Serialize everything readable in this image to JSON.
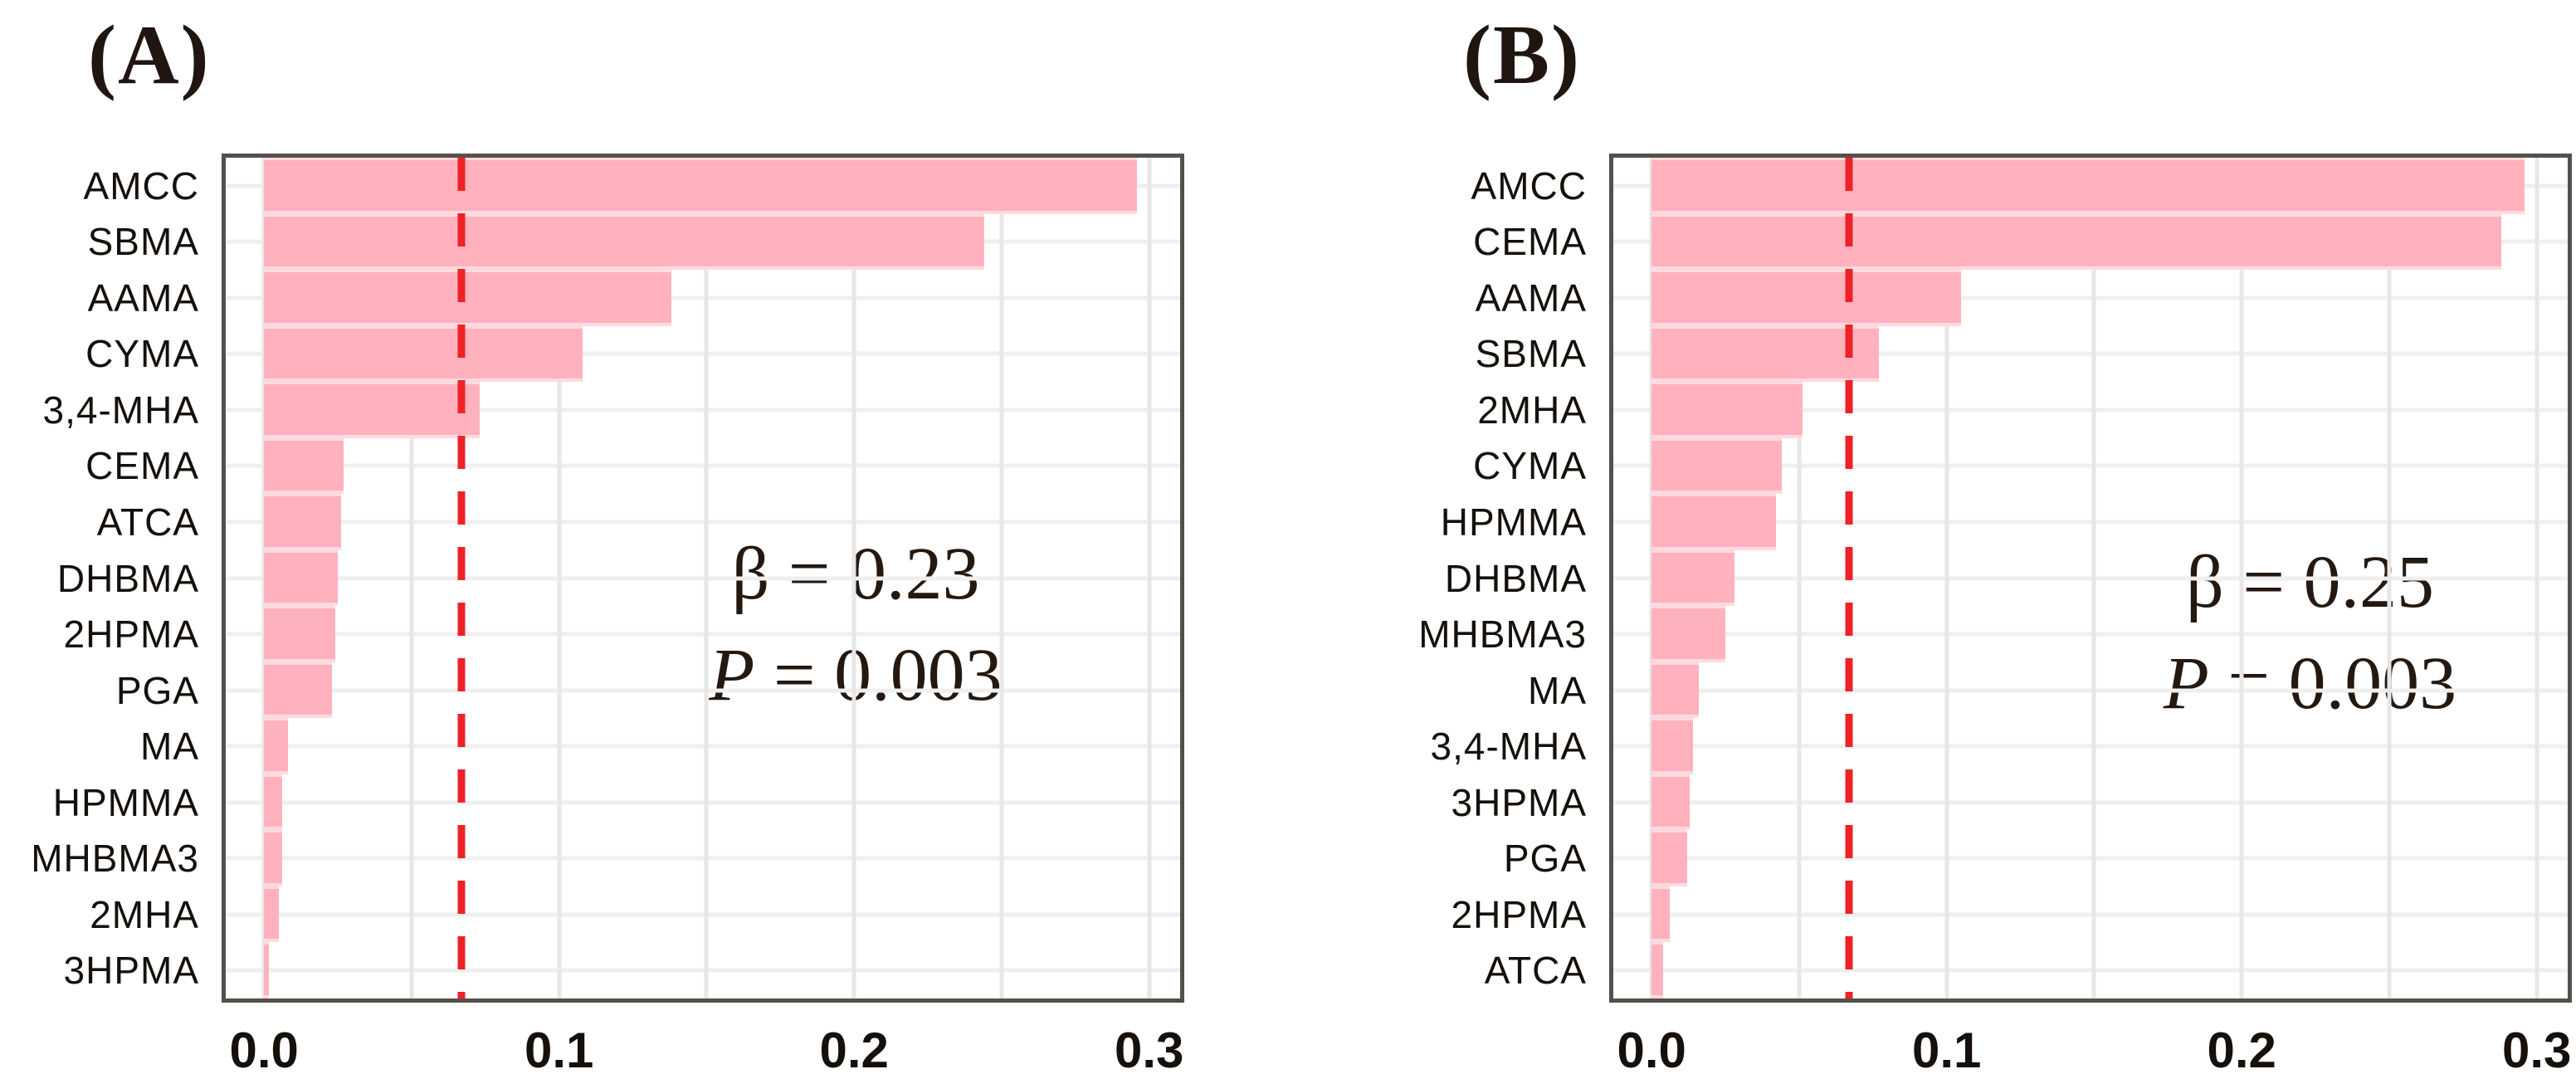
{
  "colors": {
    "bar_fill": "#ffb2be",
    "bar_separator": "#ffd9e0",
    "threshold_line": "#ee2226",
    "grid_horizontal": "#efefef",
    "grid_vertical": "#e7e7e7",
    "plot_border": "#55504a",
    "text": "#15100c",
    "background": "#ffffff"
  },
  "chart_data": [
    {
      "type": "bar",
      "orientation": "horizontal",
      "panel_label": "(A)",
      "categories": [
        "AMCC",
        "SBMA",
        "AAMA",
        "CYMA",
        "3,4-MHA",
        "CEMA",
        "ATCA",
        "DHBMA",
        "2HPMA",
        "PGA",
        "MA",
        "HPMMA",
        "MHBMA3",
        "2MHA",
        "3HPMA"
      ],
      "values": [
        0.296,
        0.244,
        0.138,
        0.108,
        0.073,
        0.027,
        0.026,
        0.025,
        0.024,
        0.023,
        0.008,
        0.006,
        0.006,
        0.005,
        0.0015
      ],
      "xlim": [
        -0.013,
        0.3105
      ],
      "xticks": [
        0,
        0.1,
        0.2,
        0.3
      ],
      "xtick_labels": [
        "0.0",
        "0.1",
        "0.2",
        "0.3"
      ],
      "grid_step": 0.05,
      "threshold": 0.067,
      "legend": false,
      "xlabel": "",
      "ylabel": "",
      "annotation": {
        "beta_symbol": "β",
        "beta_eq": " = 0.23",
        "p_symbol": "P",
        "p_eq": " = 0.003"
      }
    },
    {
      "type": "bar",
      "orientation": "horizontal",
      "panel_label": "(B)",
      "categories": [
        "AMCC",
        "CEMA",
        "AAMA",
        "SBMA",
        "2MHA",
        "CYMA",
        "HPMMA",
        "DHBMA",
        "MHBMA3",
        "MA",
        "3,4-MHA",
        "3HPMA",
        "PGA",
        "2HPMA",
        "ATCA"
      ],
      "values": [
        0.296,
        0.288,
        0.105,
        0.077,
        0.051,
        0.044,
        0.042,
        0.028,
        0.025,
        0.016,
        0.014,
        0.013,
        0.012,
        0.006,
        0.004
      ],
      "xlim": [
        -0.013,
        0.3105
      ],
      "xticks": [
        0,
        0.1,
        0.2,
        0.3
      ],
      "xtick_labels": [
        "0.0",
        "0.1",
        "0.2",
        "0.3"
      ],
      "grid_step": 0.05,
      "threshold": 0.067,
      "legend": false,
      "xlabel": "",
      "ylabel": "",
      "annotation": {
        "beta_symbol": "β",
        "beta_eq": " = 0.25",
        "p_symbol": "P",
        "p_eq": " = 0.003"
      }
    }
  ]
}
